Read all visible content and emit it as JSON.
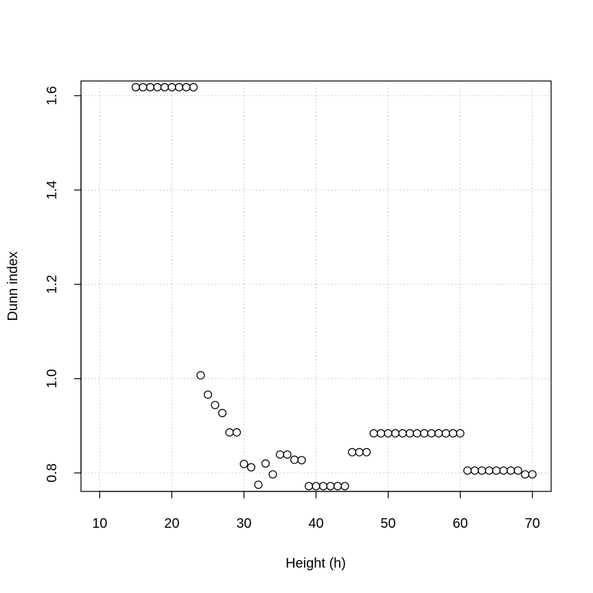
{
  "chart_data": {
    "type": "scatter",
    "title": "",
    "xlabel": "Height (h)",
    "ylabel": "Dunn index",
    "xlim": [
      7.4,
      72.6
    ],
    "ylim": [
      0.7608,
      1.6312
    ],
    "xticks": [
      10,
      20,
      30,
      40,
      50,
      60,
      70
    ],
    "yticks": [
      0.8,
      1.0,
      1.2,
      1.4,
      1.6
    ],
    "yticks_labels": [
      "0.8",
      "1.0",
      "1.2",
      "1.4",
      "1.6"
    ],
    "grid": true,
    "grid_style": "dotted",
    "marker": "open-circle",
    "series": [
      {
        "x": [
          15,
          16,
          17,
          18,
          19,
          20,
          21,
          22,
          23,
          24,
          25,
          26,
          27,
          28,
          29,
          30,
          31,
          32,
          33,
          34,
          35,
          36,
          37,
          38,
          39,
          40,
          41,
          42,
          43,
          44,
          45,
          46,
          47,
          48,
          49,
          50,
          51,
          52,
          53,
          54,
          55,
          56,
          57,
          58,
          59,
          60,
          61,
          62,
          63,
          64,
          65,
          66,
          67,
          68,
          69,
          70
        ],
        "y": [
          1.618,
          1.618,
          1.618,
          1.618,
          1.618,
          1.618,
          1.618,
          1.618,
          1.618,
          1.007,
          0.966,
          0.944,
          0.927,
          0.886,
          0.886,
          0.819,
          0.812,
          0.775,
          0.82,
          0.797,
          0.839,
          0.839,
          0.828,
          0.827,
          0.772,
          0.772,
          0.772,
          0.772,
          0.772,
          0.772,
          0.844,
          0.844,
          0.844,
          0.884,
          0.884,
          0.884,
          0.884,
          0.884,
          0.884,
          0.884,
          0.884,
          0.884,
          0.884,
          0.884,
          0.884,
          0.884,
          0.805,
          0.805,
          0.805,
          0.805,
          0.805,
          0.805,
          0.805,
          0.805,
          0.797,
          0.797
        ]
      }
    ]
  }
}
